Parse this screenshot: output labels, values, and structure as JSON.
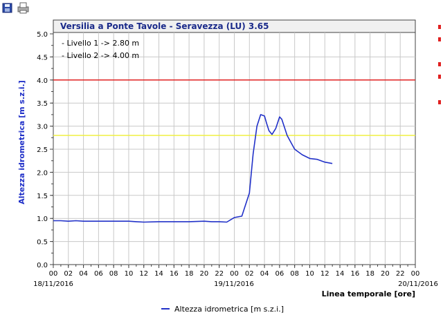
{
  "toolbar": {
    "icons": [
      "save-icon",
      "print-icon"
    ]
  },
  "colors": {
    "series": "#2030c8",
    "level1": "#f0f040",
    "level2": "#e02020",
    "grid": "#c8c8c8",
    "title_bar": "#f0f0f0",
    "title_text": "#1a2a8a",
    "axis_label": "#2030c8"
  },
  "chart_data": {
    "type": "line",
    "title": "Versilia a Ponte Tavole - Seravezza (LU) 3.65",
    "xlabel": "Linea temporale [ore]",
    "ylabel": "Altezza idrometrica [m s.z.i.]",
    "ylim": [
      0,
      5
    ],
    "yticks": [
      "0.0",
      "0.5",
      "1.0",
      "1.5",
      "2.0",
      "2.5",
      "3.0",
      "3.5",
      "4.0",
      "4.5",
      "5.0"
    ],
    "xlim_hours": [
      0,
      48
    ],
    "xticks": [
      "00",
      "02",
      "04",
      "06",
      "08",
      "10",
      "12",
      "14",
      "16",
      "18",
      "20",
      "22",
      "00",
      "02",
      "04",
      "06",
      "08",
      "10",
      "12",
      "14",
      "16",
      "18",
      "20",
      "22",
      "00"
    ],
    "date_labels": [
      {
        "hour": 0,
        "text": "18/11/2016"
      },
      {
        "hour": 24,
        "text": "19/11/2016"
      },
      {
        "hour": 48,
        "text": "20/11/2016"
      }
    ],
    "grid": true,
    "legend": "bottom-center",
    "thresholds": [
      {
        "label": "- Livello 1 -> 2.80 m",
        "value": 2.8
      },
      {
        "label": "- Livello 2 -> 4.00 m",
        "value": 4.0
      }
    ],
    "series": [
      {
        "name": "Altezza idrometrica [m s.z.i.]",
        "x_hours": [
          0,
          1,
          2,
          3,
          4,
          6,
          8,
          10,
          11,
          12,
          14,
          16,
          18,
          20,
          21,
          22,
          23,
          24,
          25,
          25.5,
          26,
          26.5,
          27,
          27.5,
          28,
          28.3,
          28.6,
          29,
          29.5,
          30,
          30.3,
          30.6,
          31,
          31.5,
          32,
          33,
          34,
          35,
          36,
          37
        ],
        "values": [
          0.95,
          0.95,
          0.94,
          0.95,
          0.94,
          0.94,
          0.94,
          0.94,
          0.93,
          0.92,
          0.93,
          0.93,
          0.93,
          0.94,
          0.93,
          0.93,
          0.92,
          1.02,
          1.05,
          1.3,
          1.55,
          2.4,
          3.0,
          3.25,
          3.22,
          3.05,
          2.9,
          2.82,
          2.95,
          3.2,
          3.15,
          3.0,
          2.8,
          2.65,
          2.5,
          2.38,
          2.3,
          2.28,
          2.22,
          2.19
        ]
      }
    ]
  }
}
